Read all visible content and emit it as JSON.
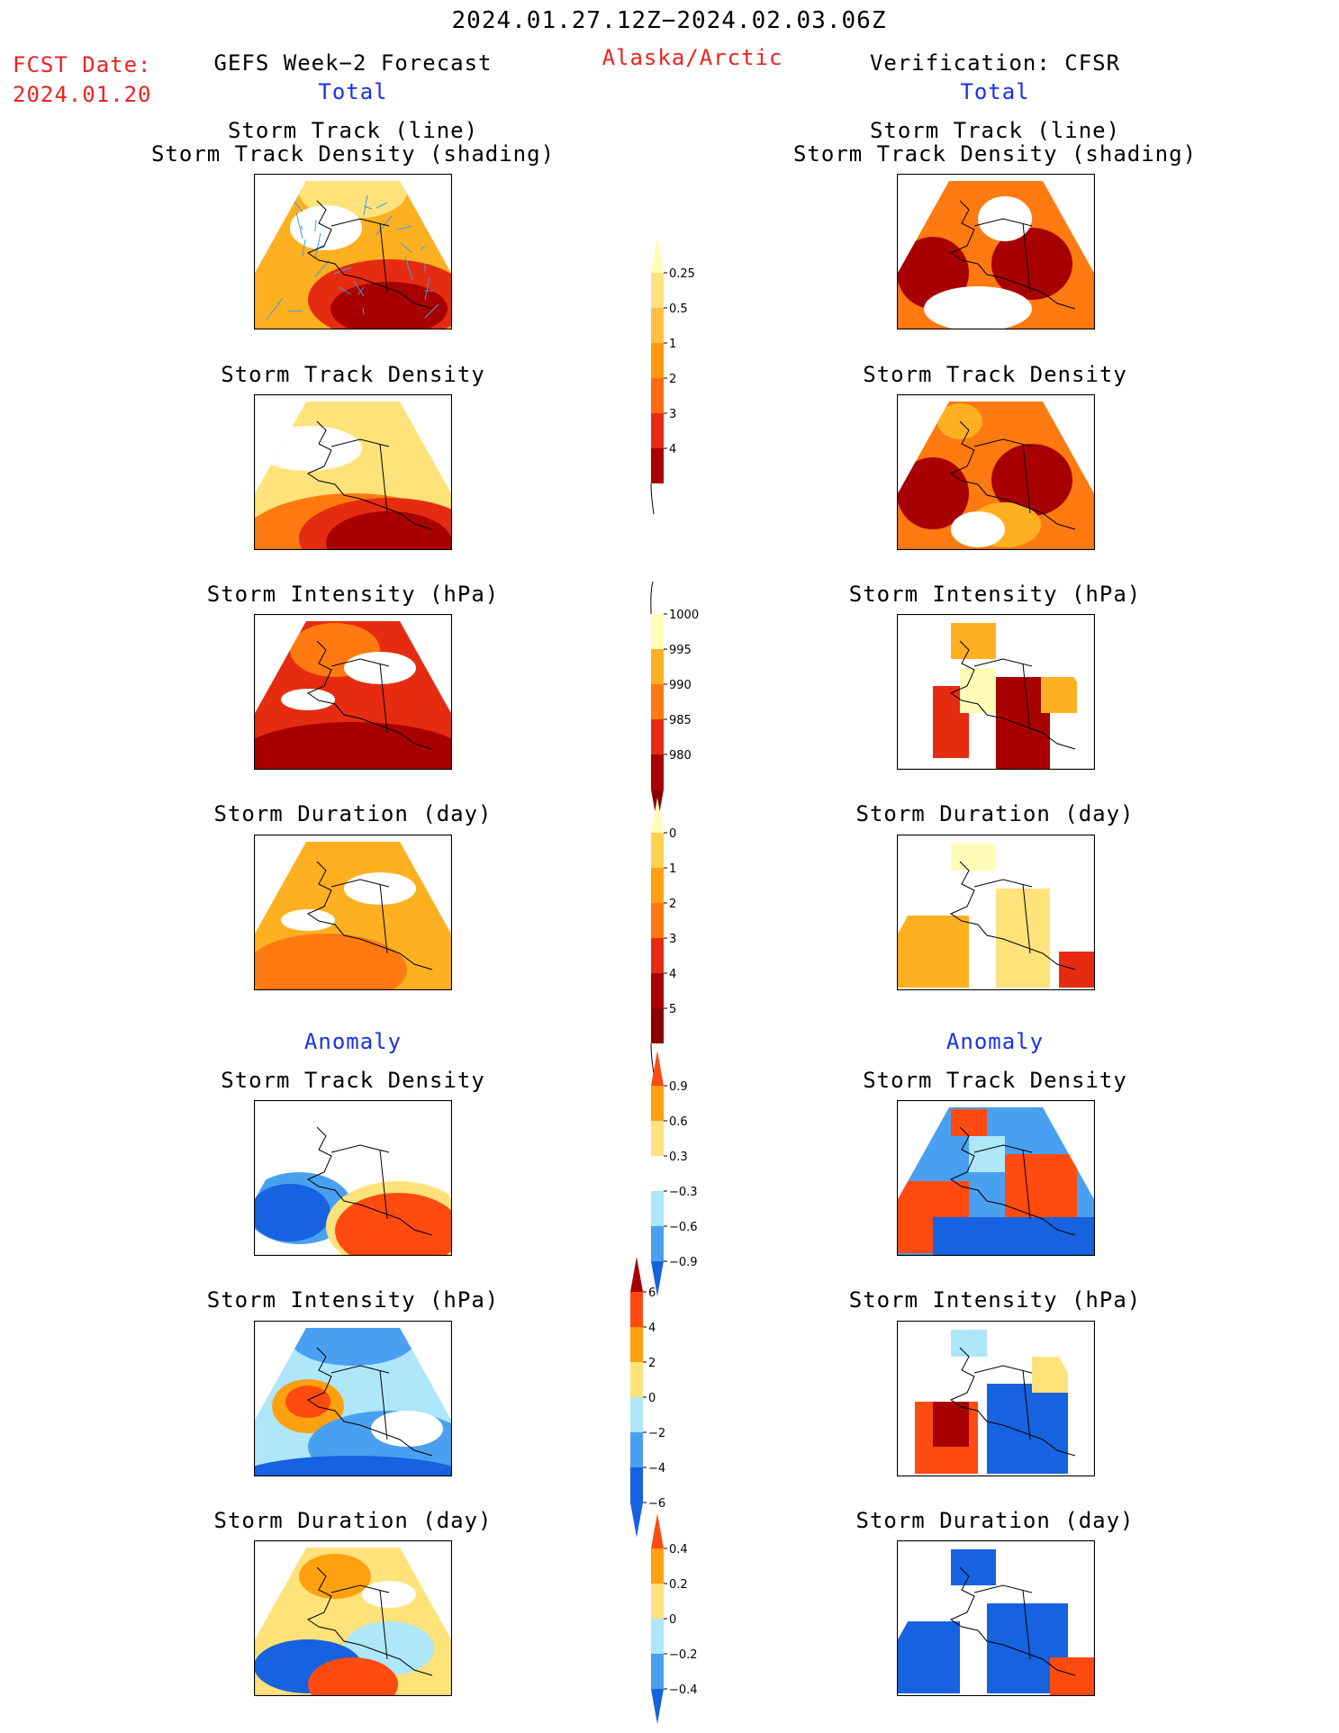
{
  "header": {
    "period": "2024.01.27.12Z−2024.02.03.06Z",
    "fcst_label": "FCST Date:",
    "fcst_date": "2024.01.20",
    "left_title": "GEFS Week−2 Forecast",
    "region": "Alaska/Arctic",
    "right_title": "Verification: CFSR"
  },
  "sections": {
    "total": "Total",
    "anomaly": "Anomaly"
  },
  "panel_titles": {
    "track_line": "Storm Track (line)",
    "track_shading": "Storm Track Density (shading)",
    "density": "Storm Track Density",
    "intensity": "Storm Intensity (hPa)",
    "duration": "Storm Duration (day)"
  },
  "colors": {
    "palette_warm": [
      "#fffcb8",
      "#ffe27a",
      "#ffb020",
      "#ff7a10",
      "#e62c10",
      "#a80000"
    ],
    "palette_anom": [
      "#1662e0",
      "#4aa0f0",
      "#aee6fa",
      "#ffffff",
      "#ffe27a",
      "#ffa010",
      "#ff4a10"
    ],
    "track_line": "#3aa0e0",
    "title_red": "#ee2222",
    "title_blue": "#1a30e6"
  },
  "chart_data": [
    {
      "type": "heatmap",
      "name": "total_density_colorbar",
      "levels": [
        0.25,
        0.5,
        1,
        2,
        3,
        4
      ],
      "tick_labels": [
        "0.25",
        "0.5",
        "1",
        "2",
        "3",
        "4"
      ],
      "colors": [
        "#fffcb8",
        "#ffe27a",
        "#ffc040",
        "#ff9810",
        "#ff6a10",
        "#e62c10",
        "#a80000"
      ]
    },
    {
      "type": "heatmap",
      "name": "total_intensity_colorbar",
      "levels": [
        1000,
        995,
        990,
        985,
        980
      ],
      "tick_labels": [
        "1000",
        "995",
        "990",
        "985",
        "980"
      ],
      "colors": [
        "#fffcb8",
        "#ffb020",
        "#ff7a10",
        "#e62c10",
        "#a80000",
        "#8a0000"
      ]
    },
    {
      "type": "heatmap",
      "name": "total_duration_colorbar",
      "levels": [
        0,
        1,
        2,
        3,
        4,
        5
      ],
      "tick_labels": [
        "0",
        "1",
        "2",
        "3",
        "4",
        "5"
      ],
      "colors": [
        "#fffcb8",
        "#ffd050",
        "#ffa010",
        "#ff7a10",
        "#e62c10",
        "#a80000",
        "#8a0000"
      ]
    },
    {
      "type": "heatmap",
      "name": "anomaly_density_colorbar",
      "levels": [
        0.9,
        0.6,
        0.3,
        -0.3,
        -0.6,
        -0.9
      ],
      "tick_labels": [
        "0.9",
        "0.6",
        "0.3",
        "−0.3",
        "−0.6",
        "−0.9"
      ],
      "colors": [
        "#ff4a10",
        "#ffa010",
        "#ffe27a",
        "#ffffff",
        "#aee6fa",
        "#4aa0f0",
        "#1662e0"
      ]
    },
    {
      "type": "heatmap",
      "name": "anomaly_intensity_colorbar",
      "levels": [
        6,
        4,
        2,
        0,
        -2,
        -4,
        -6
      ],
      "tick_labels": [
        "6",
        "4",
        "2",
        "0",
        "−2",
        "−4",
        "−6"
      ],
      "colors": [
        "#a80000",
        "#ff4a10",
        "#ffa010",
        "#ffe27a",
        "#aee6fa",
        "#4aa0f0",
        "#1662e0",
        "#1662e0"
      ]
    },
    {
      "type": "heatmap",
      "name": "anomaly_duration_colorbar",
      "levels": [
        0.4,
        0.2,
        0,
        -0.2,
        -0.4
      ],
      "tick_labels": [
        "0.4",
        "0.2",
        "0",
        "−0.2",
        "−0.4"
      ],
      "colors": [
        "#ff4a10",
        "#ffa010",
        "#ffe27a",
        "#aee6fa",
        "#4aa0f0",
        "#1662e0"
      ]
    }
  ]
}
